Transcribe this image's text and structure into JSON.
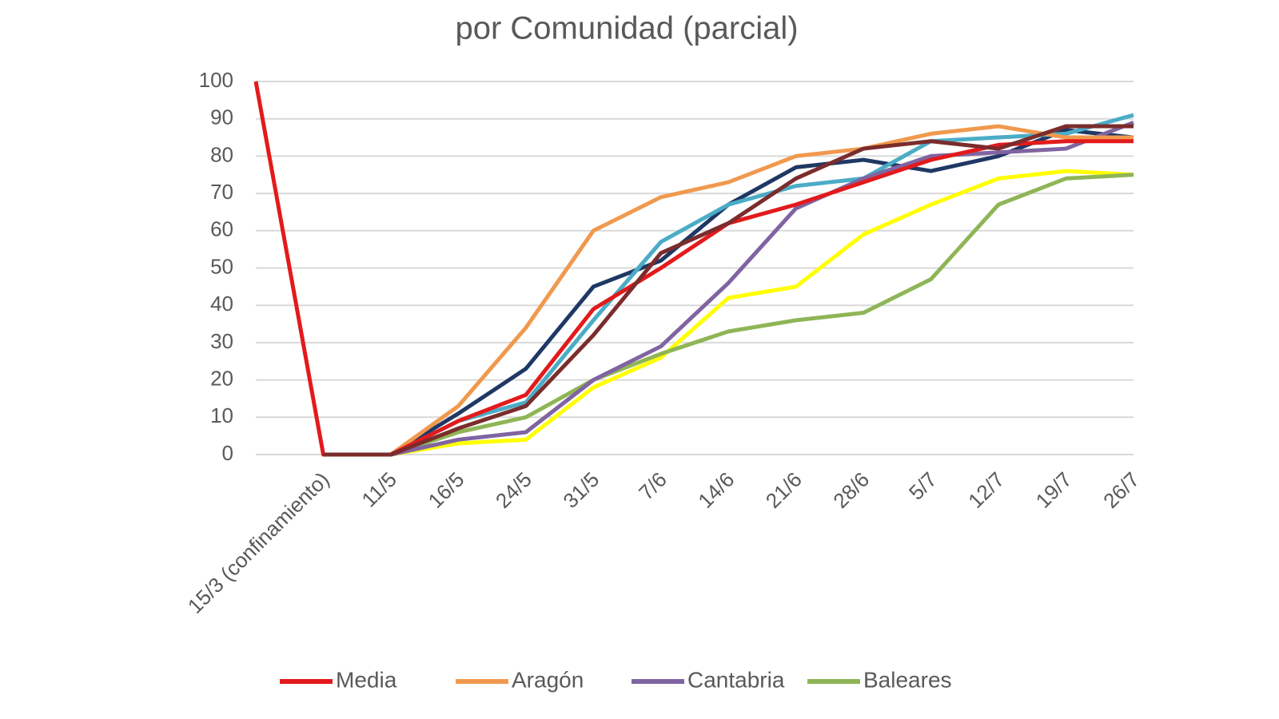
{
  "chart_data": {
    "type": "line",
    "title": "por Comunidad (parcial)",
    "categories": [
      null,
      "15/3 (confinamiento)",
      "11/5",
      "16/5",
      "24/5",
      "31/5",
      "7/6",
      "14/6",
      "21/6",
      "28/6",
      "5/7",
      "12/7",
      "19/7",
      "26/7"
    ],
    "ylim": [
      0,
      100
    ],
    "yticks": [
      0,
      10,
      20,
      30,
      40,
      50,
      60,
      70,
      80,
      90,
      100
    ],
    "grid": true,
    "legend": "bottom",
    "series": [
      {
        "color": "#1f3864",
        "values": [
          null,
          0,
          0,
          11,
          23,
          45,
          52,
          67,
          77,
          79,
          76,
          80,
          87,
          85
        ]
      },
      {
        "color": "#4bacc6",
        "values": [
          null,
          0,
          0,
          9,
          14,
          36,
          57,
          67,
          72,
          74,
          84,
          85,
          86,
          91
        ]
      },
      {
        "color": "#ffff00",
        "values": [
          null,
          0,
          0,
          3,
          4,
          18,
          26,
          42,
          45,
          59,
          67,
          74,
          76,
          75
        ]
      },
      {
        "name": "Baleares",
        "color": "#8fb556",
        "values": [
          null,
          0,
          0,
          6,
          10,
          20,
          27,
          33,
          36,
          38,
          47,
          67,
          74,
          75
        ]
      },
      {
        "name": "Cantabria",
        "color": "#8064a2",
        "values": [
          null,
          0,
          0,
          4,
          6,
          20,
          29,
          46,
          66,
          74,
          80,
          81,
          82,
          89
        ]
      },
      {
        "name": "Aragón",
        "color": "#f0994e",
        "values": [
          null,
          0,
          0,
          13,
          34,
          60,
          69,
          73,
          80,
          82,
          86,
          88,
          85,
          85
        ]
      },
      {
        "name": "Media",
        "color": "#e31a1c",
        "values": [
          100,
          0,
          0,
          9,
          16,
          39,
          50,
          62,
          67,
          73,
          79,
          83,
          84,
          84
        ]
      },
      {
        "color": "#7b2c2c",
        "values": [
          null,
          0,
          0,
          7,
          13,
          32,
          54,
          62,
          74,
          82,
          84,
          82,
          88,
          88
        ]
      }
    ]
  }
}
